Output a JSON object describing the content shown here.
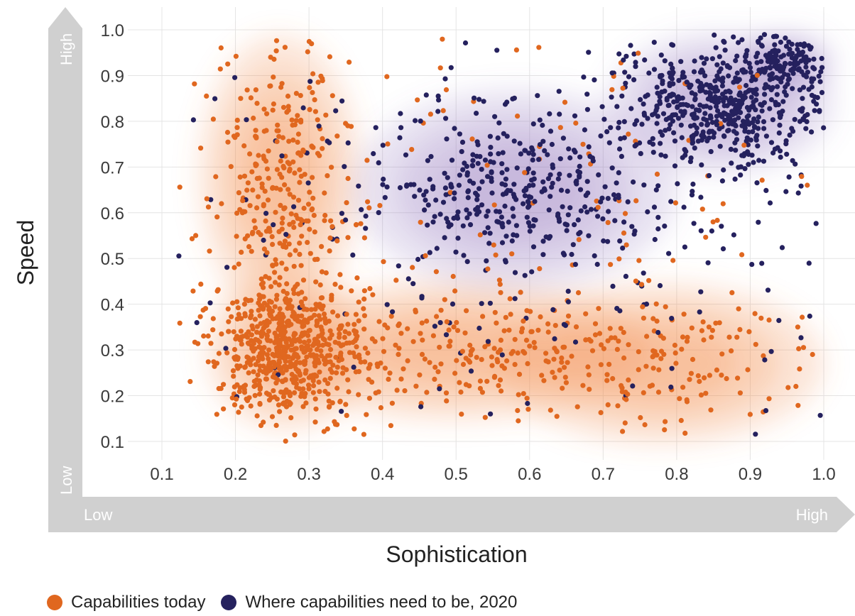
{
  "chart_data": {
    "type": "scatter",
    "xlabel": "Sophistication",
    "ylabel": "Speed",
    "xlim": [
      0.1,
      1.0
    ],
    "ylim": [
      0.1,
      1.0
    ],
    "x_ticks": [
      "0.1",
      "0.2",
      "0.3",
      "0.4",
      "0.5",
      "0.6",
      "0.7",
      "0.8",
      "0.9",
      "1.0"
    ],
    "y_ticks": [
      "0.1",
      "0.2",
      "0.3",
      "0.4",
      "0.5",
      "0.6",
      "0.7",
      "0.8",
      "0.9",
      "1.0"
    ],
    "x_arrow_labels": {
      "low": "Low",
      "high": "High"
    },
    "y_arrow_labels": {
      "low": "Low",
      "high": "High"
    },
    "grid": true,
    "legend_position": "bottom-left",
    "series": [
      {
        "name": "Capabilities today",
        "color": "#e0671f",
        "density_color": "#f08a4b",
        "clusters": [
          {
            "x": 0.27,
            "y": 0.3,
            "sx": 0.05,
            "sy": 0.08,
            "weight": 0.45
          },
          {
            "x": 0.26,
            "y": 0.68,
            "sx": 0.05,
            "sy": 0.14,
            "weight": 0.2
          },
          {
            "x": 0.5,
            "y": 0.3,
            "sx": 0.12,
            "sy": 0.07,
            "weight": 0.15
          },
          {
            "x": 0.78,
            "y": 0.27,
            "sx": 0.1,
            "sy": 0.08,
            "weight": 0.1
          },
          {
            "x": 0.55,
            "y": 0.55,
            "sx": 0.3,
            "sy": 0.28,
            "weight": 0.1
          }
        ],
        "point_count": 1350
      },
      {
        "name": "Where capabilities need to be, 2020",
        "color": "#25215e",
        "density_color": "#8a70b8",
        "clusters": [
          {
            "x": 0.86,
            "y": 0.84,
            "sx": 0.07,
            "sy": 0.07,
            "weight": 0.45
          },
          {
            "x": 0.58,
            "y": 0.65,
            "sx": 0.1,
            "sy": 0.1,
            "weight": 0.3
          },
          {
            "x": 0.95,
            "y": 0.93,
            "sx": 0.03,
            "sy": 0.03,
            "weight": 0.1
          },
          {
            "x": 0.6,
            "y": 0.55,
            "sx": 0.3,
            "sy": 0.25,
            "weight": 0.15
          }
        ],
        "point_count": 1150
      }
    ]
  }
}
